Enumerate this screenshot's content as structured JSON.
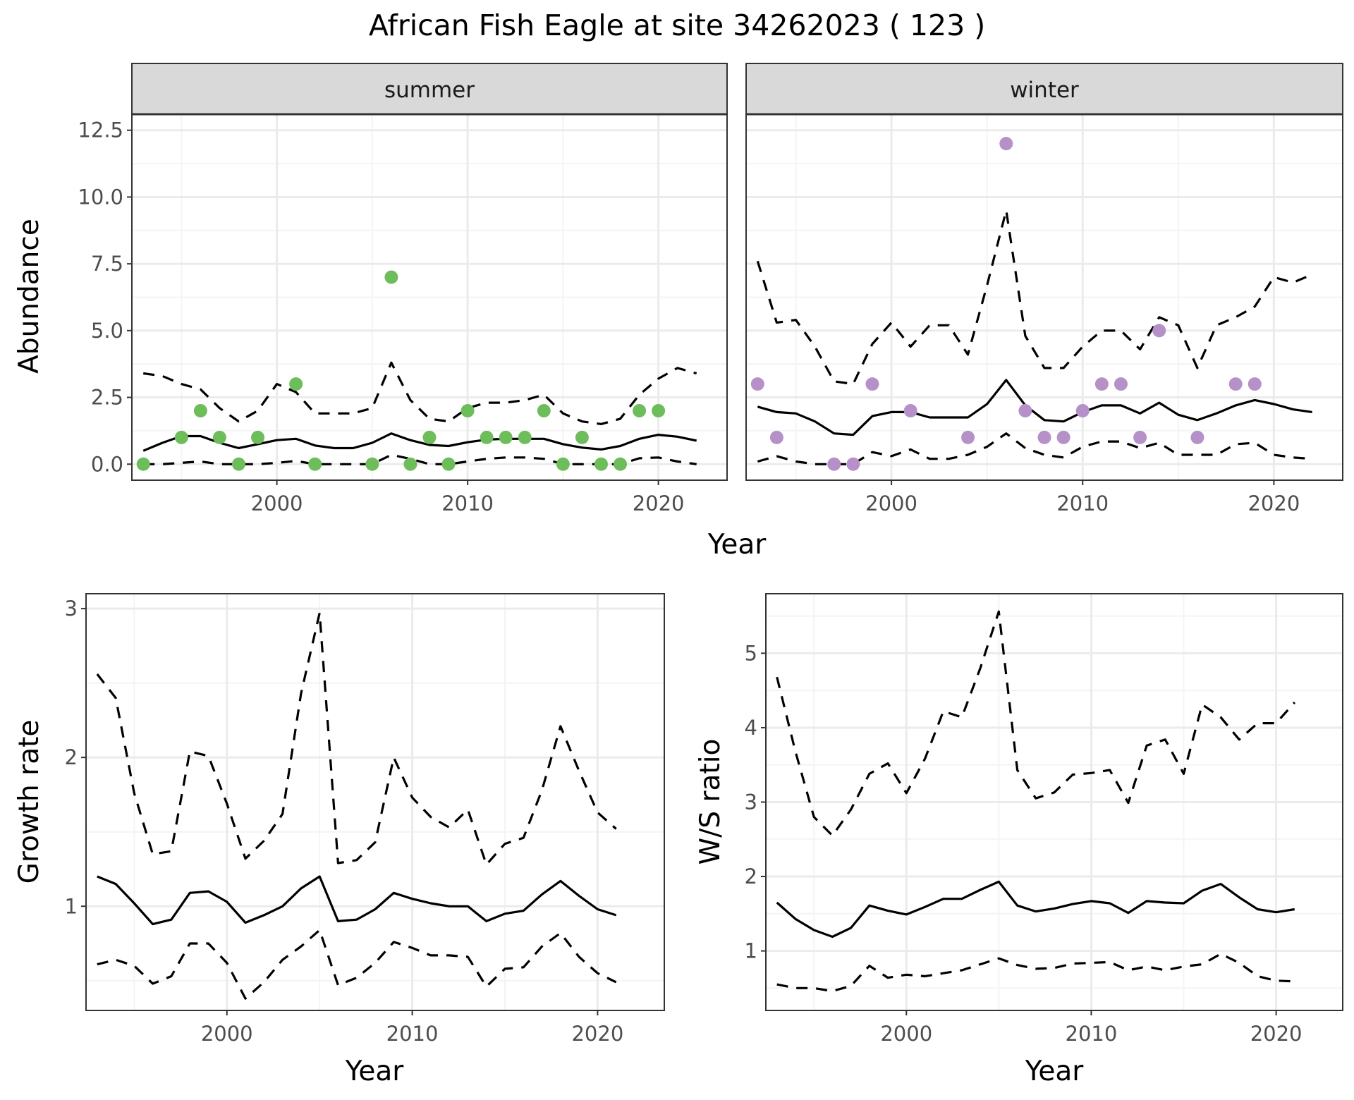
{
  "chart_data": [
    {
      "id": "abundance",
      "type": "scatter",
      "title": "African Fish Eagle at site 34262023 ( 123 )",
      "xlabel": "Year",
      "ylabel": "Abundance",
      "xlim": [
        1992.4,
        2023.6
      ],
      "ylim": [
        -0.6,
        13.1
      ],
      "xticks": [
        2000,
        2010,
        2020
      ],
      "xtick_labels": [
        "2000",
        "2010",
        "2020"
      ],
      "yticks": [
        0,
        2.5,
        5,
        7.5,
        10,
        12.5
      ],
      "ytick_labels": [
        "0.0",
        "2.5",
        "5.0",
        "7.5",
        "10.0",
        "12.5"
      ],
      "grid": true,
      "facets": [
        {
          "name": "summer",
          "point_color": "#6dbd5b",
          "points": {
            "x": [
              1993,
              1995,
              1996,
              1997,
              1998,
              1999,
              2001,
              2002,
              2005,
              2006,
              2007,
              2008,
              2009,
              2010,
              2011,
              2012,
              2013,
              2014,
              2015,
              2016,
              2017,
              2018,
              2019,
              2020
            ],
            "y": [
              0,
              1,
              2,
              1,
              0,
              1,
              3,
              0,
              0,
              7,
              0,
              1,
              0,
              2,
              1,
              1,
              1,
              2,
              0,
              1,
              0,
              0,
              2,
              2
            ]
          },
          "mean": {
            "x": [
              1993,
              1994,
              1995,
              1996,
              1997,
              1998,
              1999,
              2000,
              2001,
              2002,
              2003,
              2004,
              2005,
              2006,
              2007,
              2008,
              2009,
              2010,
              2011,
              2012,
              2013,
              2014,
              2015,
              2016,
              2017,
              2018,
              2019,
              2020,
              2021,
              2022
            ],
            "y": [
              0.5,
              0.8,
              1.05,
              1.05,
              0.8,
              0.6,
              0.75,
              0.9,
              0.95,
              0.7,
              0.6,
              0.6,
              0.8,
              1.15,
              0.9,
              0.72,
              0.68,
              0.82,
              0.92,
              0.95,
              0.95,
              0.95,
              0.75,
              0.62,
              0.55,
              0.68,
              0.95,
              1.1,
              1.03,
              0.88
            ]
          },
          "lower": {
            "x": [
              1993,
              1994,
              1995,
              1996,
              1997,
              1998,
              1999,
              2000,
              2001,
              2002,
              2003,
              2004,
              2005,
              2006,
              2007,
              2008,
              2009,
              2010,
              2011,
              2012,
              2013,
              2014,
              2015,
              2016,
              2017,
              2018,
              2019,
              2020,
              2021,
              2022
            ],
            "y": [
              0,
              0,
              0.05,
              0.1,
              0,
              0,
              0,
              0.05,
              0.12,
              0,
              0,
              0,
              0,
              0.35,
              0.2,
              0,
              0,
              0.1,
              0.2,
              0.25,
              0.25,
              0.2,
              0,
              0,
              0,
              0,
              0.22,
              0.25,
              0.1,
              0
            ]
          },
          "upper": {
            "x": [
              1993,
              1994,
              1995,
              1996,
              1997,
              1998,
              1999,
              2000,
              2001,
              2002,
              2003,
              2004,
              2005,
              2006,
              2007,
              2008,
              2009,
              2010,
              2011,
              2012,
              2013,
              2014,
              2015,
              2016,
              2017,
              2018,
              2019,
              2020,
              2021,
              2022
            ],
            "y": [
              3.4,
              3.3,
              3.0,
              2.8,
              2.1,
              1.6,
              2.0,
              3.0,
              2.7,
              1.9,
              1.9,
              1.9,
              2.1,
              3.8,
              2.4,
              1.7,
              1.6,
              2.1,
              2.3,
              2.3,
              2.4,
              2.6,
              1.9,
              1.6,
              1.5,
              1.7,
              2.6,
              3.2,
              3.6,
              3.4
            ]
          }
        },
        {
          "name": "winter",
          "point_color": "#b690c8",
          "points": {
            "x": [
              1993,
              1994,
              1997,
              1998,
              1999,
              2001,
              2004,
              2006,
              2007,
              2008,
              2009,
              2010,
              2011,
              2012,
              2013,
              2014,
              2016,
              2018,
              2019
            ],
            "y": [
              3,
              1,
              0,
              0,
              3,
              2,
              1,
              12,
              2,
              1,
              1,
              2,
              3,
              3,
              1,
              5,
              1,
              3,
              3
            ]
          },
          "mean": {
            "x": [
              1993,
              1994,
              1995,
              1996,
              1997,
              1998,
              1999,
              2000,
              2001,
              2002,
              2003,
              2004,
              2005,
              2006,
              2007,
              2008,
              2009,
              2010,
              2011,
              2012,
              2013,
              2014,
              2015,
              2016,
              2017,
              2018,
              2019,
              2020,
              2021,
              2022
            ],
            "y": [
              2.15,
              1.95,
              1.9,
              1.6,
              1.15,
              1.1,
              1.8,
              1.95,
              1.95,
              1.75,
              1.75,
              1.75,
              2.25,
              3.15,
              2.2,
              1.65,
              1.6,
              1.95,
              2.2,
              2.2,
              1.9,
              2.3,
              1.85,
              1.65,
              1.9,
              2.2,
              2.4,
              2.25,
              2.05,
              1.95
            ]
          },
          "lower": {
            "x": [
              1993,
              1994,
              1995,
              1996,
              1997,
              1998,
              1999,
              2000,
              2001,
              2002,
              2003,
              2004,
              2005,
              2006,
              2007,
              2008,
              2009,
              2010,
              2011,
              2012,
              2013,
              2014,
              2015,
              2016,
              2017,
              2018,
              2019,
              2020,
              2021,
              2022
            ],
            "y": [
              0.1,
              0.3,
              0.1,
              0,
              0,
              0,
              0.45,
              0.3,
              0.55,
              0.2,
              0.2,
              0.35,
              0.65,
              1.15,
              0.6,
              0.35,
              0.25,
              0.65,
              0.85,
              0.85,
              0.6,
              0.8,
              0.35,
              0.35,
              0.35,
              0.75,
              0.8,
              0.35,
              0.25,
              0.2
            ]
          },
          "upper": {
            "x": [
              1993,
              1994,
              1995,
              1996,
              1997,
              1998,
              1999,
              2000,
              2001,
              2002,
              2003,
              2004,
              2005,
              2006,
              2007,
              2008,
              2009,
              2010,
              2011,
              2012,
              2013,
              2014,
              2015,
              2016,
              2017,
              2018,
              2019,
              2020,
              2021,
              2022
            ],
            "y": [
              7.6,
              5.3,
              5.4,
              4.4,
              3.1,
              3.0,
              4.5,
              5.3,
              4.4,
              5.2,
              5.2,
              4.1,
              6.7,
              9.5,
              4.8,
              3.6,
              3.6,
              4.4,
              5.0,
              5.0,
              4.3,
              5.5,
              5.2,
              3.6,
              5.2,
              5.5,
              5.9,
              7.0,
              6.8,
              7.1
            ]
          }
        }
      ]
    },
    {
      "id": "growth",
      "type": "line",
      "title": "",
      "xlabel": "Year",
      "ylabel": "Growth rate",
      "xlim": [
        1992.4,
        2023.6
      ],
      "ylim": [
        0.3,
        3.1
      ],
      "xticks": [
        2000,
        2010,
        2020
      ],
      "xtick_labels": [
        "2000",
        "2010",
        "2020"
      ],
      "yticks": [
        1,
        2,
        3
      ],
      "ytick_labels": [
        "1",
        "2",
        "3"
      ],
      "minor_yticks": [
        0.5,
        1.5,
        2.5
      ],
      "grid": true,
      "series": [
        {
          "name": "mean",
          "style": "solid",
          "x": [
            1993,
            1994,
            1995,
            1996,
            1997,
            1998,
            1999,
            2000,
            2001,
            2002,
            2003,
            2004,
            2005,
            2006,
            2007,
            2008,
            2009,
            2010,
            2011,
            2012,
            2013,
            2014,
            2015,
            2016,
            2017,
            2018,
            2019,
            2020,
            2021
          ],
          "y": [
            1.2,
            1.15,
            1.02,
            0.88,
            0.91,
            1.09,
            1.1,
            1.03,
            0.89,
            0.94,
            1.0,
            1.12,
            1.2,
            0.9,
            0.91,
            0.98,
            1.09,
            1.05,
            1.02,
            1.0,
            1.0,
            0.9,
            0.95,
            0.97,
            1.08,
            1.17,
            1.07,
            0.98,
            0.94
          ]
        },
        {
          "name": "lower",
          "style": "dashed",
          "x": [
            1993,
            1994,
            1995,
            1996,
            1997,
            1998,
            1999,
            2000,
            2001,
            2002,
            2003,
            2004,
            2005,
            2006,
            2007,
            2008,
            2009,
            2010,
            2011,
            2012,
            2013,
            2014,
            2015,
            2016,
            2017,
            2018,
            2019,
            2020,
            2021
          ],
          "y": [
            0.61,
            0.64,
            0.6,
            0.48,
            0.53,
            0.75,
            0.75,
            0.62,
            0.38,
            0.49,
            0.64,
            0.73,
            0.84,
            0.47,
            0.52,
            0.62,
            0.76,
            0.72,
            0.67,
            0.67,
            0.66,
            0.46,
            0.58,
            0.59,
            0.73,
            0.82,
            0.66,
            0.55,
            0.49
          ]
        },
        {
          "name": "upper",
          "style": "dashed",
          "x": [
            1993,
            1994,
            1995,
            1996,
            1997,
            1998,
            1999,
            2000,
            2001,
            2002,
            2003,
            2004,
            2005,
            2006,
            2007,
            2008,
            2009,
            2010,
            2011,
            2012,
            2013,
            2014,
            2015,
            2016,
            2017,
            2018,
            2019,
            2020,
            2021
          ],
          "y": [
            2.56,
            2.4,
            1.76,
            1.35,
            1.37,
            2.04,
            2.01,
            1.69,
            1.32,
            1.44,
            1.62,
            2.43,
            2.97,
            1.29,
            1.31,
            1.43,
            2.0,
            1.73,
            1.6,
            1.53,
            1.65,
            1.28,
            1.42,
            1.46,
            1.78,
            2.21,
            1.91,
            1.63,
            1.52
          ]
        }
      ]
    },
    {
      "id": "ws_ratio",
      "type": "line",
      "title": "",
      "xlabel": "Year",
      "ylabel": "W/S ratio",
      "xlim": [
        1992.4,
        2023.6
      ],
      "ylim": [
        0.2,
        5.8
      ],
      "xticks": [
        2000,
        2010,
        2020
      ],
      "xtick_labels": [
        "2000",
        "2010",
        "2020"
      ],
      "yticks": [
        1,
        2,
        3,
        4,
        5
      ],
      "ytick_labels": [
        "1",
        "2",
        "3",
        "4",
        "5"
      ],
      "minor_yticks": [
        0.5,
        1.5,
        2.5,
        3.5,
        4.5,
        5.5
      ],
      "grid": true,
      "series": [
        {
          "name": "mean",
          "style": "solid",
          "x": [
            1993,
            1994,
            1995,
            1996,
            1997,
            1998,
            1999,
            2000,
            2001,
            2002,
            2003,
            2004,
            2005,
            2006,
            2007,
            2008,
            2009,
            2010,
            2011,
            2012,
            2013,
            2014,
            2015,
            2016,
            2017,
            2018,
            2019,
            2020,
            2021
          ],
          "y": [
            1.65,
            1.43,
            1.28,
            1.19,
            1.31,
            1.61,
            1.54,
            1.49,
            1.59,
            1.7,
            1.7,
            1.82,
            1.93,
            1.61,
            1.53,
            1.57,
            1.63,
            1.67,
            1.64,
            1.51,
            1.67,
            1.65,
            1.64,
            1.81,
            1.9,
            1.72,
            1.56,
            1.52,
            1.56
          ]
        },
        {
          "name": "lower",
          "style": "dashed",
          "x": [
            1993,
            1994,
            1995,
            1996,
            1997,
            1998,
            1999,
            2000,
            2001,
            2002,
            2003,
            2004,
            2005,
            2006,
            2007,
            2008,
            2009,
            2010,
            2011,
            2012,
            2013,
            2014,
            2015,
            2016,
            2017,
            2018,
            2019,
            2020,
            2021
          ],
          "y": [
            0.55,
            0.5,
            0.5,
            0.46,
            0.53,
            0.8,
            0.64,
            0.68,
            0.66,
            0.7,
            0.74,
            0.82,
            0.9,
            0.81,
            0.76,
            0.77,
            0.83,
            0.84,
            0.85,
            0.74,
            0.79,
            0.74,
            0.79,
            0.82,
            0.96,
            0.84,
            0.66,
            0.6,
            0.59
          ]
        },
        {
          "name": "upper",
          "style": "dashed",
          "x": [
            1993,
            1994,
            1995,
            1996,
            1997,
            1998,
            1999,
            2000,
            2001,
            2002,
            2003,
            2004,
            2005,
            2006,
            2007,
            2008,
            2009,
            2010,
            2011,
            2012,
            2013,
            2014,
            2015,
            2016,
            2017,
            2018,
            2019,
            2020,
            2021
          ],
          "y": [
            4.68,
            3.68,
            2.8,
            2.55,
            2.9,
            3.38,
            3.52,
            3.12,
            3.58,
            4.22,
            4.14,
            4.8,
            5.56,
            3.43,
            3.05,
            3.13,
            3.37,
            3.39,
            3.43,
            2.99,
            3.76,
            3.84,
            3.38,
            4.31,
            4.14,
            3.84,
            4.06,
            4.06,
            4.34
          ]
        }
      ]
    }
  ],
  "styles": {
    "panel_border": "#333333",
    "strip_fill": "#d9d9d9",
    "grid_major": "#ebebeb",
    "grid_minor": "#f4f4f4",
    "line_color": "#000000"
  }
}
